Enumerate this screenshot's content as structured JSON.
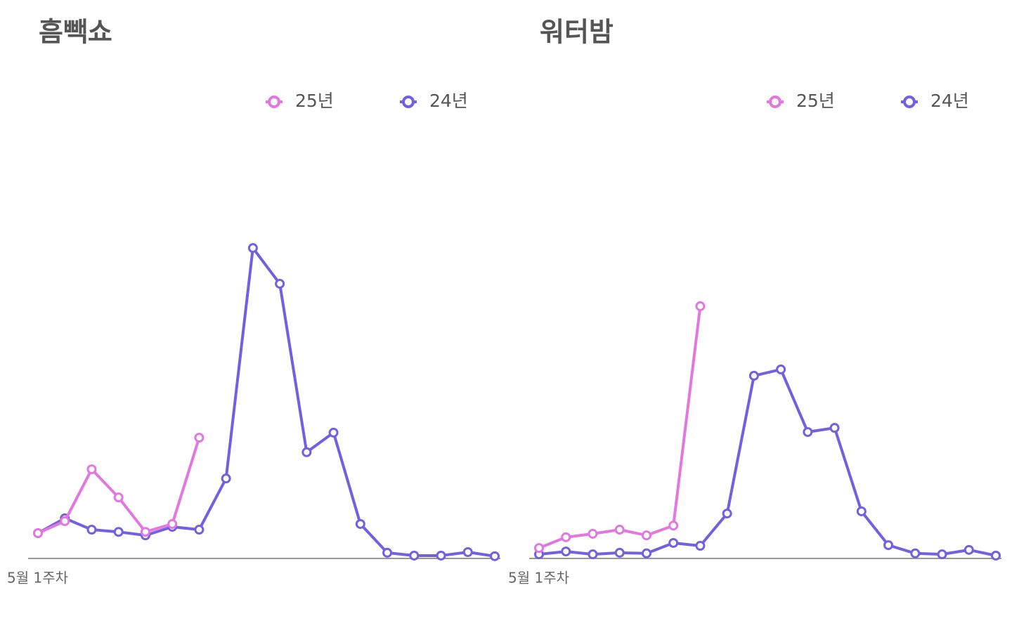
{
  "chart_data": [
    {
      "type": "line",
      "title": "흠빽쇼",
      "categories": [
        "5월 1주차",
        null,
        null,
        null,
        null,
        null,
        null,
        null,
        null,
        null,
        null,
        null,
        null,
        null,
        null,
        null,
        null,
        null
      ],
      "ylim": [
        0,
        100
      ],
      "series": [
        {
          "name": "25년",
          "color": "#e377e0",
          "values": [
            8,
            11.8,
            28.2,
            19.3,
            8.4,
            10.9,
            38.2,
            null,
            null,
            null,
            null,
            null,
            null,
            null,
            null,
            null,
            null,
            null
          ]
        },
        {
          "name": "24년",
          "color": "#7360e0",
          "values": [
            8,
            12.7,
            9.1,
            8.4,
            7.3,
            10,
            9.1,
            25.3,
            98.2,
            86.9,
            33.6,
            39.8,
            10.9,
            1.8,
            0.9,
            0.9,
            2,
            0.7
          ]
        }
      ]
    },
    {
      "type": "line",
      "title": "워터밤",
      "categories": [
        "5월 1주차",
        null,
        null,
        null,
        null,
        null,
        null,
        null,
        null,
        null,
        null,
        null,
        null,
        null,
        null,
        null,
        null,
        null
      ],
      "ylim": [
        0,
        100
      ],
      "series": [
        {
          "name": "25년",
          "color": "#e377e0",
          "values": [
            3.3,
            6.7,
            7.8,
            9.1,
            7.3,
            10.4,
            79.8,
            null,
            null,
            null,
            null,
            null,
            null,
            null,
            null,
            null,
            null,
            null
          ]
        },
        {
          "name": "24년",
          "color": "#7360e0",
          "values": [
            1.3,
            2.2,
            1.3,
            1.8,
            1.6,
            4.9,
            4,
            14.2,
            57.8,
            59.8,
            40,
            41.3,
            14.9,
            4.2,
            1.6,
            1.3,
            2.7,
            0.9
          ]
        }
      ]
    }
  ]
}
